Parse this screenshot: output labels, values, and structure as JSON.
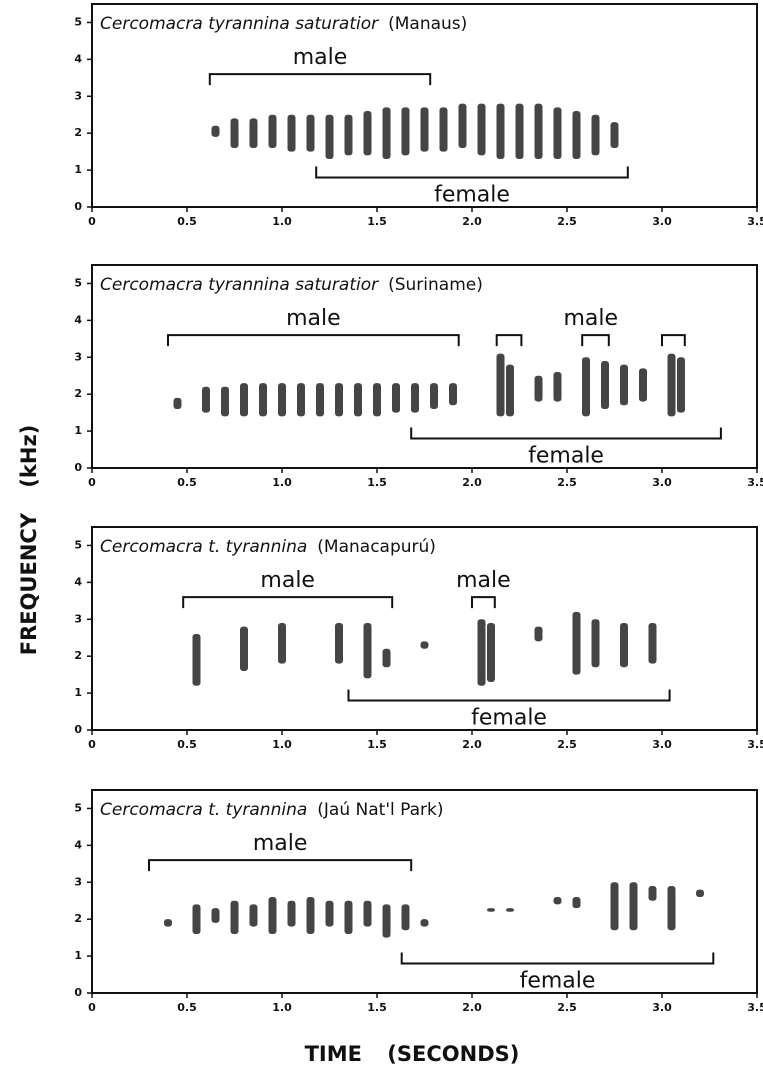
{
  "figure": {
    "y_label": "FREQUENCY (kHz)",
    "x_label": "TIME (SECONDS)"
  },
  "chart_data": [
    {
      "type": "spectrogram",
      "species": "Cercomacra tyrannina saturatior",
      "locality": "(Manaus)",
      "xlim": [
        0,
        3.5
      ],
      "ylim": [
        0,
        5.5
      ],
      "xticks": [
        0,
        0.5,
        {
          "value": 1,
          "label": "1.0"
        },
        1.5,
        {
          "value": 2,
          "label": "2.0"
        },
        2.5,
        {
          "value": 3,
          "label": "3.0"
        },
        3.5
      ],
      "yticks": [
        0,
        1,
        2,
        3,
        4,
        5
      ],
      "annotations": [
        {
          "label": "male",
          "side": "above",
          "spans": [
            [
              0.62,
              1.78
            ]
          ]
        },
        {
          "label": "female",
          "side": "below",
          "spans": [
            [
              1.18,
              2.82
            ]
          ]
        }
      ],
      "syllables": {
        "t": [
          0.65,
          0.75,
          0.85,
          0.95,
          1.05,
          1.15,
          1.25,
          1.35,
          1.45,
          1.55,
          1.65,
          1.75,
          1.85,
          1.95,
          2.05,
          2.15,
          2.25,
          2.35,
          2.45,
          2.55,
          2.65,
          2.75
        ],
        "lo": [
          1.9,
          1.6,
          1.6,
          1.6,
          1.5,
          1.5,
          1.3,
          1.4,
          1.4,
          1.3,
          1.4,
          1.5,
          1.5,
          1.6,
          1.4,
          1.3,
          1.3,
          1.3,
          1.3,
          1.3,
          1.4,
          1.6
        ],
        "hi": [
          2.2,
          2.4,
          2.4,
          2.5,
          2.5,
          2.5,
          2.5,
          2.5,
          2.6,
          2.7,
          2.7,
          2.7,
          2.7,
          2.8,
          2.8,
          2.8,
          2.8,
          2.8,
          2.7,
          2.6,
          2.5,
          2.3
        ]
      }
    },
    {
      "type": "spectrogram",
      "species": "Cercomacra tyrannina saturatior",
      "locality": "(Suriname)",
      "xlim": [
        0,
        3.5
      ],
      "ylim": [
        0,
        5.5
      ],
      "xticks": [
        0,
        0.5,
        {
          "value": 1,
          "label": "1.0"
        },
        1.5,
        {
          "value": 2,
          "label": "2.0"
        },
        2.5,
        {
          "value": 3,
          "label": "3.0"
        },
        3.5
      ],
      "yticks": [
        0,
        1,
        2,
        3,
        4,
        5
      ],
      "annotations": [
        {
          "label": "male",
          "side": "above",
          "spans": [
            [
              0.4,
              1.93
            ]
          ]
        },
        {
          "label": "male",
          "side": "above",
          "spans": [
            [
              2.13,
              2.26
            ],
            [
              2.58,
              2.72
            ],
            [
              3.0,
              3.12
            ]
          ]
        },
        {
          "label": "female",
          "side": "below",
          "spans": [
            [
              1.68,
              3.31
            ]
          ]
        }
      ],
      "syllables": {
        "t": [
          0.45,
          0.6,
          0.7,
          0.8,
          0.9,
          1.0,
          1.1,
          1.2,
          1.3,
          1.4,
          1.5,
          1.6,
          1.7,
          1.8,
          1.9,
          2.15,
          2.2,
          2.35,
          2.45,
          2.6,
          2.7,
          2.8,
          2.9,
          3.05,
          3.1
        ],
        "lo": [
          1.6,
          1.5,
          1.4,
          1.4,
          1.4,
          1.4,
          1.4,
          1.4,
          1.4,
          1.4,
          1.4,
          1.5,
          1.5,
          1.6,
          1.7,
          1.4,
          1.4,
          1.8,
          1.8,
          1.4,
          1.6,
          1.7,
          1.8,
          1.4,
          1.5
        ],
        "hi": [
          1.9,
          2.2,
          2.2,
          2.3,
          2.3,
          2.3,
          2.3,
          2.3,
          2.3,
          2.3,
          2.3,
          2.3,
          2.3,
          2.3,
          2.3,
          3.1,
          2.8,
          2.5,
          2.6,
          3.0,
          2.9,
          2.8,
          2.7,
          3.1,
          3.0
        ]
      }
    },
    {
      "type": "spectrogram",
      "species": "Cercomacra t. tyrannina",
      "locality": "(Manacapurú)",
      "xlim": [
        0,
        3.5
      ],
      "ylim": [
        0,
        5.5
      ],
      "xticks": [
        0,
        0.5,
        {
          "value": 1,
          "label": "1.0"
        },
        1.5,
        {
          "value": 2,
          "label": "2.0"
        },
        2.5,
        {
          "value": 3,
          "label": "3.0"
        },
        3.5
      ],
      "yticks": [
        0,
        1,
        2,
        3,
        4,
        5
      ],
      "annotations": [
        {
          "label": "male",
          "side": "above",
          "spans": [
            [
              0.48,
              1.58
            ]
          ]
        },
        {
          "label": "male",
          "side": "above",
          "spans": [
            [
              2.0,
              2.12
            ]
          ]
        },
        {
          "label": "female",
          "side": "below",
          "spans": [
            [
              1.35,
              3.04
            ]
          ]
        }
      ],
      "syllables": {
        "t": [
          0.55,
          0.8,
          1.0,
          1.3,
          1.45,
          1.55,
          1.75,
          2.05,
          2.1,
          2.35,
          2.55,
          2.65,
          2.8,
          2.95
        ],
        "lo": [
          1.2,
          1.6,
          1.8,
          1.8,
          1.4,
          1.7,
          2.2,
          1.2,
          1.3,
          2.4,
          1.5,
          1.7,
          1.7,
          1.8
        ],
        "hi": [
          2.6,
          2.8,
          2.9,
          2.9,
          2.9,
          2.2,
          2.4,
          3.0,
          2.9,
          2.8,
          3.2,
          3.0,
          2.9,
          2.9
        ]
      }
    },
    {
      "type": "spectrogram",
      "species": "Cercomacra t. tyrannina",
      "locality": "(Jaú Nat'l Park)",
      "xlim": [
        0,
        3.5
      ],
      "ylim": [
        0,
        5.5
      ],
      "xticks": [
        0,
        0.5,
        {
          "value": 1,
          "label": "1.0"
        },
        1.5,
        {
          "value": 2,
          "label": "2.0"
        },
        2.5,
        {
          "value": 3,
          "label": "3.0"
        },
        3.5
      ],
      "yticks": [
        0,
        1,
        2,
        3,
        4,
        5
      ],
      "annotations": [
        {
          "label": "male",
          "side": "above",
          "spans": [
            [
              0.3,
              1.68
            ]
          ]
        },
        {
          "label": "female",
          "side": "below",
          "spans": [
            [
              1.63,
              3.27
            ]
          ]
        }
      ],
      "syllables": {
        "t": [
          0.4,
          0.55,
          0.65,
          0.75,
          0.85,
          0.95,
          1.05,
          1.15,
          1.25,
          1.35,
          1.45,
          1.55,
          1.65,
          1.75,
          2.1,
          2.2,
          2.45,
          2.55,
          2.75,
          2.85,
          2.95,
          3.05,
          3.2
        ],
        "lo": [
          1.8,
          1.6,
          1.9,
          1.6,
          1.8,
          1.6,
          1.8,
          1.6,
          1.8,
          1.6,
          1.8,
          1.5,
          1.7,
          1.8,
          2.2,
          2.2,
          2.4,
          2.3,
          1.7,
          1.7,
          2.5,
          1.7,
          2.6
        ],
        "hi": [
          2.0,
          2.4,
          2.3,
          2.5,
          2.4,
          2.6,
          2.5,
          2.6,
          2.5,
          2.5,
          2.5,
          2.4,
          2.4,
          2.0,
          2.3,
          2.3,
          2.6,
          2.6,
          3.0,
          3.0,
          2.9,
          2.9,
          2.8
        ]
      }
    }
  ]
}
